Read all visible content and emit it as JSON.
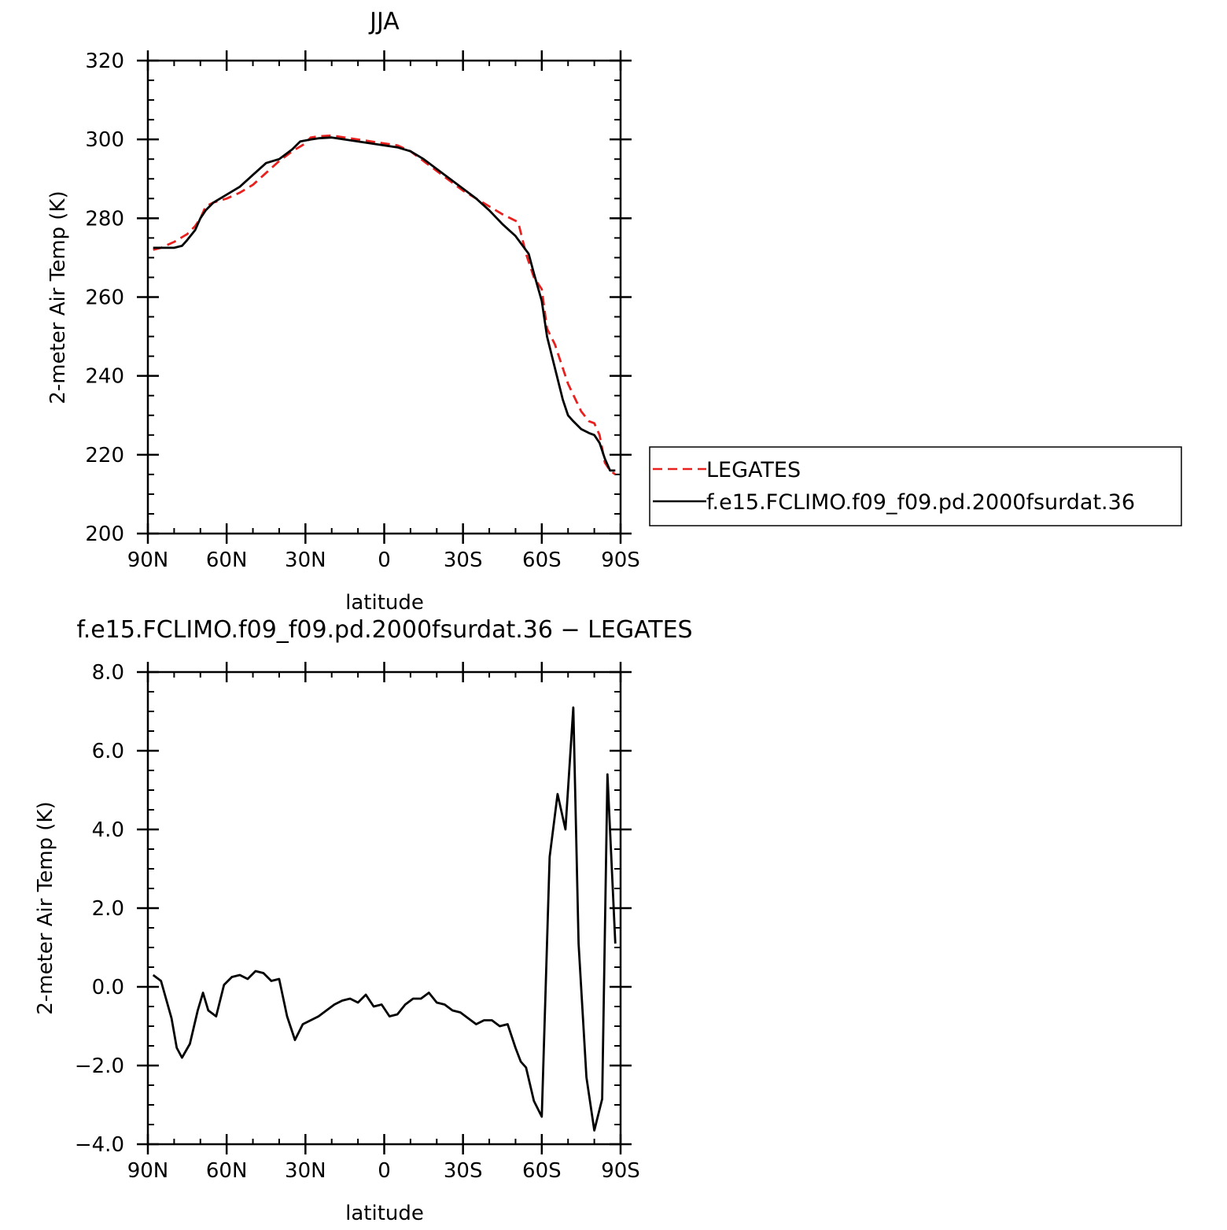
{
  "chart_data": [
    {
      "type": "line",
      "title": "JJA",
      "xlabel": "latitude",
      "ylabel": "2-meter Air Temp (K)",
      "xlim": [
        90,
        -90
      ],
      "ylim": [
        200,
        320
      ],
      "xticks": [
        90,
        60,
        30,
        0,
        -30,
        -60,
        -90
      ],
      "xtick_labels": [
        "90N",
        "60N",
        "30N",
        "0",
        "30S",
        "60S",
        "90S"
      ],
      "yticks": [
        200,
        220,
        240,
        260,
        280,
        300,
        320
      ],
      "ytick_labels": [
        "200",
        "220",
        "240",
        "260",
        "280",
        "300",
        "320"
      ],
      "legend": "right",
      "series": [
        {
          "name": "LEGATES",
          "color": "#e8201e",
          "style": "dashed",
          "x": [
            88,
            85,
            80,
            75,
            72,
            70,
            68,
            65,
            60,
            55,
            50,
            45,
            40,
            35,
            30,
            28,
            25,
            20,
            15,
            10,
            5,
            0,
            -5,
            -10,
            -15,
            -20,
            -25,
            -30,
            -35,
            -40,
            -45,
            -48,
            -51,
            -54,
            -55,
            -57,
            -60,
            -62,
            -65,
            -70,
            -75,
            -78,
            -80,
            -82,
            -84,
            -86,
            -88
          ],
          "y": [
            272,
            272.5,
            274,
            276,
            278,
            280,
            283,
            284,
            285,
            286.5,
            288.5,
            291.5,
            294.5,
            297,
            299,
            300.5,
            300.8,
            301,
            300.5,
            300,
            299.5,
            299,
            298.5,
            297,
            294.5,
            292,
            289.5,
            287,
            285,
            283,
            281,
            280,
            279,
            271,
            269,
            265,
            262,
            252,
            248,
            238,
            231,
            228.5,
            228,
            225,
            218,
            216,
            215
          ]
        },
        {
          "name": "f.e15.FCLIMO.f09_f09.pd.2000fsurdat.36",
          "color": "#000000",
          "style": "solid",
          "x": [
            88,
            85,
            80,
            77,
            75,
            72,
            70,
            68,
            65,
            60,
            55,
            50,
            45,
            40,
            35,
            32,
            28,
            25,
            20,
            15,
            10,
            5,
            0,
            -5,
            -10,
            -15,
            -20,
            -25,
            -30,
            -35,
            -40,
            -45,
            -50,
            -55,
            -57,
            -60,
            -62,
            -65,
            -68,
            -70,
            -72,
            -75,
            -78,
            -80,
            -82,
            -84,
            -86,
            -88
          ],
          "y": [
            272.5,
            272.5,
            272.5,
            273,
            274.5,
            277,
            280,
            282,
            284,
            286,
            288,
            291,
            294,
            295,
            297.5,
            299.5,
            300,
            300.3,
            300.5,
            300,
            299.5,
            299,
            298.5,
            298,
            297,
            295,
            292.5,
            290,
            287.5,
            285,
            282,
            278.5,
            275.5,
            271,
            266,
            259,
            250,
            242,
            234,
            230,
            228.5,
            226.5,
            225.5,
            225,
            223,
            219,
            216,
            216
          ]
        }
      ]
    },
    {
      "type": "line",
      "title": "f.e15.FCLIMO.f09_f09.pd.2000fsurdat.36 − LEGATES",
      "xlabel": "latitude",
      "ylabel": "2-meter Air Temp (K)",
      "xlim": [
        90,
        -90
      ],
      "ylim": [
        -4,
        8
      ],
      "xticks": [
        90,
        60,
        30,
        0,
        -30,
        -60,
        -90
      ],
      "xtick_labels": [
        "90N",
        "60N",
        "30N",
        "0",
        "30S",
        "60S",
        "90S"
      ],
      "yticks": [
        -4,
        -2,
        0,
        2,
        4,
        6,
        8
      ],
      "ytick_labels": [
        "−4.0",
        "−2.0",
        "0.0",
        "2.0",
        "4.0",
        "6.0",
        "8.0"
      ],
      "series": [
        {
          "color": "#000000",
          "style": "solid",
          "x": [
            88,
            85,
            81,
            79,
            77,
            74,
            71,
            69,
            67,
            64,
            61,
            58,
            55,
            52,
            49,
            46,
            43,
            40,
            37,
            34,
            31,
            28,
            25,
            22,
            19,
            16,
            13,
            10,
            7,
            4,
            1,
            -2,
            -5,
            -8,
            -11,
            -14,
            -17,
            -20,
            -23,
            -26,
            -29,
            -32,
            -35,
            -38,
            -41,
            -44,
            -47,
            -50,
            -52,
            -54,
            -57,
            -60,
            -63,
            -66,
            -69,
            -72,
            -74,
            -77,
            -80,
            -83,
            -85,
            -88
          ],
          "y": [
            0.3,
            0.15,
            -0.8,
            -1.55,
            -1.8,
            -1.45,
            -0.6,
            -0.15,
            -0.6,
            -0.75,
            0.05,
            0.25,
            0.3,
            0.2,
            0.4,
            0.35,
            0.15,
            0.2,
            -0.75,
            -1.35,
            -0.95,
            -0.85,
            -0.75,
            -0.6,
            -0.45,
            -0.35,
            -0.3,
            -0.4,
            -0.2,
            -0.5,
            -0.45,
            -0.75,
            -0.7,
            -0.45,
            -0.3,
            -0.3,
            -0.15,
            -0.4,
            -0.45,
            -0.6,
            -0.65,
            -0.8,
            -0.95,
            -0.85,
            -0.85,
            -1.0,
            -0.95,
            -1.55,
            -1.9,
            -2.05,
            -2.9,
            -3.3,
            3.3,
            4.9,
            4.0,
            7.1,
            1.1,
            -2.3,
            -3.65,
            -2.85,
            5.4,
            1.1
          ]
        }
      ]
    }
  ]
}
